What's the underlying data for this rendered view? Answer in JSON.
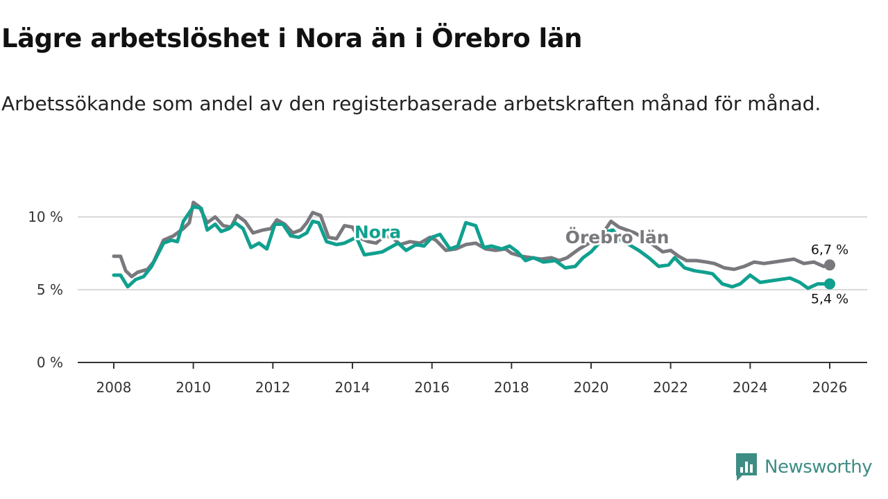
{
  "title": "Lägre arbetslöshet i Nora än i Örebro län",
  "subtitle": "Arbetssökande som andel av den registerbaserade arbetskraften månad för månad.",
  "brand": {
    "name": "Newsworthy",
    "icon": "bar-chart-bubble-icon",
    "color": "#3d8d85"
  },
  "colors": {
    "nora": "#10a08f",
    "lan": "#78787d",
    "grid": "#d9d9d9",
    "axis": "#333333"
  },
  "chart_data": {
    "type": "line",
    "title": "Lägre arbetslöshet i Nora än i Örebro län",
    "xlabel": "",
    "ylabel": "",
    "xlim": [
      2007.5,
      2027.0
    ],
    "ylim": [
      0,
      11
    ],
    "x_ticks": [
      2008,
      2010,
      2012,
      2014,
      2016,
      2018,
      2020,
      2022,
      2024,
      2026
    ],
    "x_tick_labels": [
      "2008",
      "2010",
      "2012",
      "2014",
      "2016",
      "2018",
      "2020",
      "2022",
      "2024",
      "2026"
    ],
    "y_ticks": [
      0,
      5,
      10
    ],
    "y_tick_labels": [
      "0 %",
      "5 %",
      "10 %"
    ],
    "grid": true,
    "series": [
      {
        "name": "Örebro län",
        "color": "#78787d",
        "label_at": [
          2019.35,
          8.2
        ],
        "end_label": "6,7 %",
        "points": [
          [
            2008.0,
            7.3
          ],
          [
            2008.17,
            7.3
          ],
          [
            2008.3,
            6.3
          ],
          [
            2008.45,
            5.9
          ],
          [
            2008.6,
            6.2
          ],
          [
            2008.85,
            6.4
          ],
          [
            2009.0,
            6.9
          ],
          [
            2009.25,
            8.4
          ],
          [
            2009.5,
            8.7
          ],
          [
            2009.75,
            9.2
          ],
          [
            2009.9,
            9.6
          ],
          [
            2010.0,
            11.0
          ],
          [
            2010.15,
            10.7
          ],
          [
            2010.35,
            9.6
          ],
          [
            2010.55,
            10.0
          ],
          [
            2010.75,
            9.4
          ],
          [
            2010.95,
            9.3
          ],
          [
            2011.1,
            10.1
          ],
          [
            2011.3,
            9.7
          ],
          [
            2011.5,
            8.9
          ],
          [
            2011.75,
            9.1
          ],
          [
            2011.95,
            9.2
          ],
          [
            2012.1,
            9.8
          ],
          [
            2012.3,
            9.5
          ],
          [
            2012.5,
            8.9
          ],
          [
            2012.7,
            9.1
          ],
          [
            2012.85,
            9.6
          ],
          [
            2013.0,
            10.3
          ],
          [
            2013.2,
            10.1
          ],
          [
            2013.4,
            8.6
          ],
          [
            2013.6,
            8.5
          ],
          [
            2013.8,
            9.4
          ],
          [
            2014.0,
            9.3
          ],
          [
            2014.15,
            8.6
          ],
          [
            2014.4,
            8.3
          ],
          [
            2014.6,
            8.2
          ],
          [
            2014.8,
            8.7
          ],
          [
            2015.0,
            8.6
          ],
          [
            2015.2,
            8.1
          ],
          [
            2015.45,
            8.3
          ],
          [
            2015.7,
            8.2
          ],
          [
            2015.95,
            8.6
          ],
          [
            2016.1,
            8.4
          ],
          [
            2016.35,
            7.7
          ],
          [
            2016.6,
            7.8
          ],
          [
            2016.85,
            8.1
          ],
          [
            2017.1,
            8.2
          ],
          [
            2017.35,
            7.8
          ],
          [
            2017.6,
            7.7
          ],
          [
            2017.85,
            7.8
          ],
          [
            2018.0,
            7.5
          ],
          [
            2018.25,
            7.3
          ],
          [
            2018.5,
            7.2
          ],
          [
            2018.75,
            7.1
          ],
          [
            2019.0,
            7.2
          ],
          [
            2019.2,
            7.0
          ],
          [
            2019.4,
            7.2
          ],
          [
            2019.7,
            7.8
          ],
          [
            2019.95,
            8.2
          ],
          [
            2020.2,
            8.6
          ],
          [
            2020.35,
            9.1
          ],
          [
            2020.5,
            9.7
          ],
          [
            2020.7,
            9.3
          ],
          [
            2020.9,
            9.1
          ],
          [
            2021.1,
            8.9
          ],
          [
            2021.35,
            8.5
          ],
          [
            2021.6,
            8.0
          ],
          [
            2021.8,
            7.6
          ],
          [
            2022.0,
            7.7
          ],
          [
            2022.2,
            7.3
          ],
          [
            2022.4,
            7.0
          ],
          [
            2022.65,
            7.0
          ],
          [
            2022.9,
            6.9
          ],
          [
            2023.1,
            6.8
          ],
          [
            2023.35,
            6.5
          ],
          [
            2023.6,
            6.4
          ],
          [
            2023.85,
            6.6
          ],
          [
            2024.1,
            6.9
          ],
          [
            2024.35,
            6.8
          ],
          [
            2024.6,
            6.9
          ],
          [
            2024.85,
            7.0
          ],
          [
            2025.1,
            7.1
          ],
          [
            2025.35,
            6.8
          ],
          [
            2025.6,
            6.9
          ],
          [
            2025.85,
            6.6
          ],
          [
            2026.0,
            6.7
          ]
        ]
      },
      {
        "name": "Nora",
        "color": "#10a08f",
        "label_at": [
          2014.05,
          8.55
        ],
        "end_label": "5,4 %",
        "points": [
          [
            2008.0,
            6.0
          ],
          [
            2008.17,
            6.0
          ],
          [
            2008.35,
            5.2
          ],
          [
            2008.55,
            5.7
          ],
          [
            2008.75,
            5.9
          ],
          [
            2008.95,
            6.6
          ],
          [
            2009.1,
            7.4
          ],
          [
            2009.25,
            8.2
          ],
          [
            2009.45,
            8.4
          ],
          [
            2009.6,
            8.3
          ],
          [
            2009.75,
            9.7
          ],
          [
            2010.0,
            10.7
          ],
          [
            2010.2,
            10.6
          ],
          [
            2010.35,
            9.1
          ],
          [
            2010.55,
            9.5
          ],
          [
            2010.7,
            9.0
          ],
          [
            2010.9,
            9.2
          ],
          [
            2011.05,
            9.6
          ],
          [
            2011.25,
            9.2
          ],
          [
            2011.45,
            7.9
          ],
          [
            2011.65,
            8.2
          ],
          [
            2011.85,
            7.8
          ],
          [
            2012.05,
            9.5
          ],
          [
            2012.25,
            9.5
          ],
          [
            2012.45,
            8.7
          ],
          [
            2012.65,
            8.6
          ],
          [
            2012.85,
            8.9
          ],
          [
            2013.0,
            9.7
          ],
          [
            2013.15,
            9.6
          ],
          [
            2013.35,
            8.3
          ],
          [
            2013.6,
            8.1
          ],
          [
            2013.8,
            8.2
          ],
          [
            2014.1,
            8.6
          ],
          [
            2014.3,
            7.4
          ],
          [
            2014.55,
            7.5
          ],
          [
            2014.75,
            7.6
          ],
          [
            2014.95,
            7.9
          ],
          [
            2015.15,
            8.2
          ],
          [
            2015.35,
            7.7
          ],
          [
            2015.6,
            8.1
          ],
          [
            2015.8,
            8.0
          ],
          [
            2016.0,
            8.6
          ],
          [
            2016.2,
            8.8
          ],
          [
            2016.45,
            7.8
          ],
          [
            2016.65,
            8.0
          ],
          [
            2016.85,
            9.6
          ],
          [
            2017.1,
            9.4
          ],
          [
            2017.3,
            7.9
          ],
          [
            2017.5,
            8.0
          ],
          [
            2017.75,
            7.8
          ],
          [
            2017.95,
            8.0
          ],
          [
            2018.15,
            7.6
          ],
          [
            2018.35,
            7.0
          ],
          [
            2018.55,
            7.2
          ],
          [
            2018.8,
            6.9
          ],
          [
            2019.1,
            7.0
          ],
          [
            2019.35,
            6.5
          ],
          [
            2019.6,
            6.6
          ],
          [
            2019.8,
            7.2
          ],
          [
            2020.0,
            7.6
          ],
          [
            2020.2,
            8.2
          ],
          [
            2020.4,
            9.0
          ],
          [
            2020.55,
            9.1
          ],
          [
            2020.75,
            8.4
          ],
          [
            2020.95,
            8.1
          ],
          [
            2021.2,
            7.7
          ],
          [
            2021.45,
            7.2
          ],
          [
            2021.7,
            6.6
          ],
          [
            2021.95,
            6.7
          ],
          [
            2022.1,
            7.2
          ],
          [
            2022.35,
            6.5
          ],
          [
            2022.6,
            6.3
          ],
          [
            2022.85,
            6.2
          ],
          [
            2023.05,
            6.1
          ],
          [
            2023.3,
            5.4
          ],
          [
            2023.55,
            5.2
          ],
          [
            2023.75,
            5.4
          ],
          [
            2024.0,
            6.0
          ],
          [
            2024.25,
            5.5
          ],
          [
            2024.5,
            5.6
          ],
          [
            2024.75,
            5.7
          ],
          [
            2025.0,
            5.8
          ],
          [
            2025.25,
            5.5
          ],
          [
            2025.45,
            5.1
          ],
          [
            2025.7,
            5.4
          ],
          [
            2026.0,
            5.4
          ]
        ]
      }
    ]
  }
}
